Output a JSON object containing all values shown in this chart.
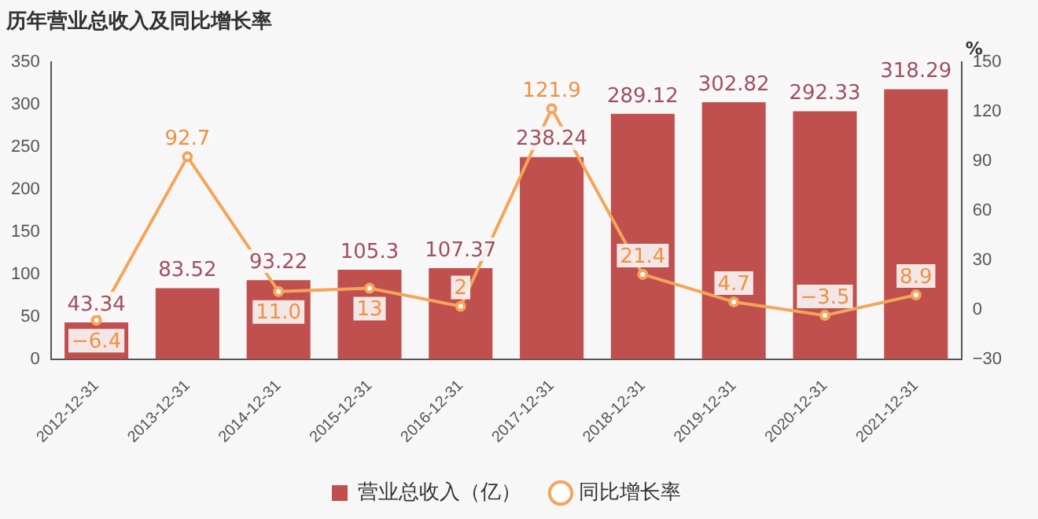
{
  "chart_data": {
    "type": "bar",
    "title": "历年营业总收入及同比增长率",
    "y2label": "%",
    "categories": [
      "2012-12-31",
      "2013-12-31",
      "2014-12-31",
      "2015-12-31",
      "2016-12-31",
      "2017-12-31",
      "2018-12-31",
      "2019-12-31",
      "2020-12-31",
      "2021-12-31"
    ],
    "series": [
      {
        "name": "营业总收入（亿）",
        "color": "#c0504d",
        "values": [
          43.34,
          83.52,
          93.22,
          105.3,
          107.37,
          238.24,
          289.12,
          302.82,
          292.33,
          318.29
        ]
      },
      {
        "name": "同比增长率",
        "type": "line",
        "axis": "y2",
        "color": "#f5a55a",
        "values": [
          -6.4,
          92.7,
          11.0,
          13,
          2,
          121.9,
          21.4,
          4.7,
          -3.5,
          8.9
        ],
        "value_labels": [
          "−6.4",
          "92.7",
          "11.0",
          "13",
          "2",
          "121.9",
          "21.4",
          "4.7",
          "−3.5",
          "8.9"
        ]
      }
    ],
    "ylim": [
      0,
      350
    ],
    "yticks": [
      0,
      50,
      100,
      150,
      200,
      250,
      300,
      350
    ],
    "y2lim": [
      -30,
      150
    ],
    "y2ticks": [
      -30,
      0,
      30,
      60,
      90,
      120,
      150
    ],
    "grid": false,
    "legend": "bottom",
    "marker": "circle",
    "data_labels": true
  }
}
